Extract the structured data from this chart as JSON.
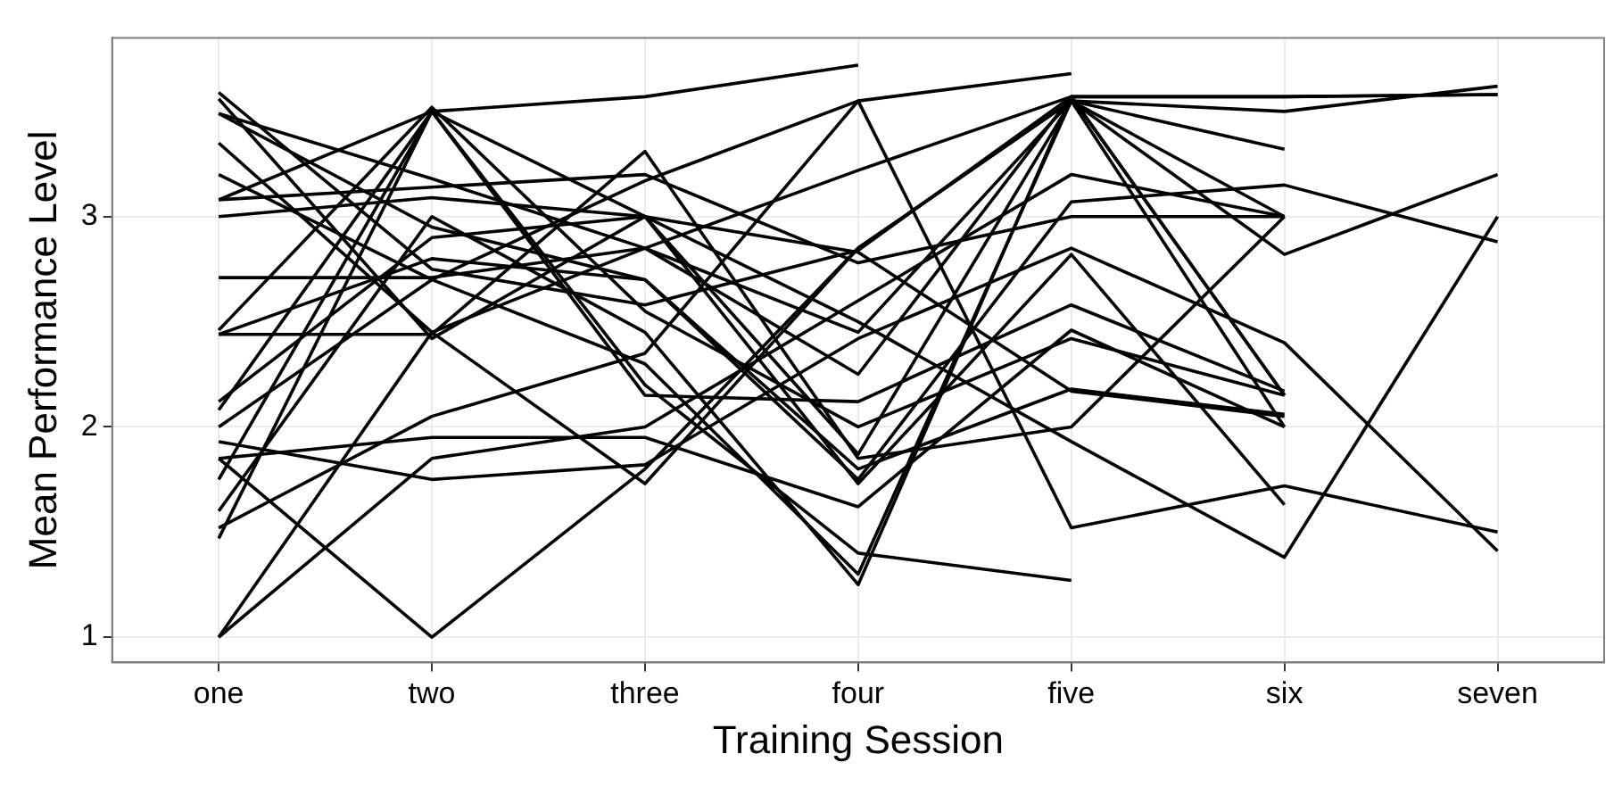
{
  "chart_data": {
    "type": "line",
    "xlabel": "Training Session",
    "ylabel": "Mean Performance Level",
    "categories": [
      "one",
      "two",
      "three",
      "four",
      "five",
      "six",
      "seven"
    ],
    "ylim": [
      0.88,
      3.85
    ],
    "yticks": [
      1,
      2,
      3
    ],
    "grid": true,
    "legend": false,
    "marker": "none",
    "line_style": "solid",
    "series": [
      {
        "color": "#000000",
        "values": [
          3.59,
          2.75,
          2.58,
          2.84,
          3.57,
          3.57,
          3.58
        ]
      },
      {
        "color": "#000000",
        "values": [
          3.56,
          2.42,
          3.0,
          1.87,
          3.55,
          2.82,
          3.2
        ]
      },
      {
        "color": "#000000",
        "values": [
          3.49,
          3.18,
          2.85,
          2.45,
          3.55,
          3.5,
          3.62
        ]
      },
      {
        "color": "#000000",
        "values": [
          3.49,
          2.95,
          2.7,
          1.75,
          3.07,
          3.15,
          2.88
        ]
      },
      {
        "color": "#000000",
        "values": [
          3.35,
          2.45,
          1.73,
          2.85,
          3.55,
          3.0,
          null
        ]
      },
      {
        "color": "#000000",
        "values": [
          3.2,
          2.7,
          2.3,
          1.3,
          3.55,
          3.32,
          null
        ]
      },
      {
        "color": "#000000",
        "values": [
          3.08,
          3.5,
          3.57,
          3.72,
          null,
          null,
          null
        ]
      },
      {
        "color": "#000000",
        "values": [
          3.08,
          3.14,
          3.2,
          2.78,
          3.0,
          3.0,
          null
        ]
      },
      {
        "color": "#000000",
        "values": [
          3.0,
          3.09,
          3.0,
          2.83,
          2.17,
          2.05,
          null
        ]
      },
      {
        "color": "#000000",
        "values": [
          2.71,
          2.71,
          2.85,
          3.22,
          3.57,
          2.15,
          null
        ]
      },
      {
        "color": "#000000",
        "values": [
          2.46,
          3.52,
          2.55,
          2.0,
          2.42,
          2.15,
          null
        ]
      },
      {
        "color": "#000000",
        "values": [
          2.44,
          2.44,
          3.31,
          1.85,
          2.0,
          3.0,
          null
        ]
      },
      {
        "color": "#000000",
        "values": [
          2.12,
          2.9,
          3.0,
          2.5,
          1.93,
          1.38,
          3.0
        ]
      },
      {
        "color": "#000000",
        "values": [
          2.08,
          3.5,
          3.0,
          1.73,
          2.82,
          1.63,
          null
        ]
      },
      {
        "color": "#000000",
        "values": [
          2.0,
          2.7,
          3.17,
          3.55,
          3.68,
          null,
          null
        ]
      },
      {
        "color": "#000000",
        "values": [
          1.93,
          1.75,
          1.82,
          2.42,
          2.85,
          2.4,
          1.41
        ]
      },
      {
        "color": "#000000",
        "values": [
          1.85,
          1.95,
          1.95,
          1.62,
          2.46,
          2.0,
          null
        ]
      },
      {
        "color": "#000000",
        "values": [
          1.75,
          3.5,
          2.2,
          1.4,
          1.27,
          null,
          null
        ]
      },
      {
        "color": "#000000",
        "values": [
          1.6,
          3.0,
          2.45,
          1.25,
          3.57,
          3.57,
          3.58
        ]
      },
      {
        "color": "#000000",
        "values": [
          1.52,
          2.05,
          2.35,
          3.55,
          1.52,
          1.72,
          1.5
        ]
      },
      {
        "color": "#000000",
        "values": [
          1.47,
          3.5,
          2.15,
          2.12,
          2.58,
          2.17,
          null
        ]
      },
      {
        "color": "#000000",
        "values": [
          1.0,
          1.85,
          2.0,
          2.6,
          3.2,
          3.0,
          null
        ]
      },
      {
        "color": "#000000",
        "values": [
          1.0,
          2.45,
          2.85,
          2.25,
          3.57,
          2.15,
          null
        ]
      },
      {
        "color": "#000000",
        "values": [
          1.85,
          1.0,
          1.8,
          2.85,
          3.55,
          2.0,
          null
        ]
      },
      {
        "color": "#000000",
        "values": [
          2.44,
          2.8,
          2.7,
          1.8,
          2.18,
          2.06,
          null
        ]
      }
    ]
  }
}
